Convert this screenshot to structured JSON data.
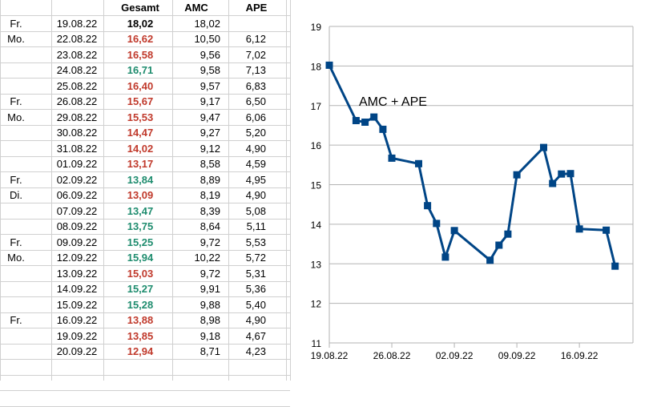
{
  "table": {
    "headers": {
      "day": "",
      "date": "",
      "gesamt": "Gesamt",
      "amc": "AMC",
      "ape": "APE"
    },
    "rows": [
      {
        "day": "Fr.",
        "date": "19.08.22",
        "gesamt": "18,02",
        "amc": "18,02",
        "ape": "",
        "gesamt_color": "black"
      },
      {
        "day": "Mo.",
        "date": "22.08.22",
        "gesamt": "16,62",
        "amc": "10,50",
        "ape": "6,12",
        "gesamt_color": "red"
      },
      {
        "day": "",
        "date": "23.08.22",
        "gesamt": "16,58",
        "amc": "9,56",
        "ape": "7,02",
        "gesamt_color": "red"
      },
      {
        "day": "",
        "date": "24.08.22",
        "gesamt": "16,71",
        "amc": "9,58",
        "ape": "7,13",
        "gesamt_color": "green"
      },
      {
        "day": "",
        "date": "25.08.22",
        "gesamt": "16,40",
        "amc": "9,57",
        "ape": "6,83",
        "gesamt_color": "red"
      },
      {
        "day": "Fr.",
        "date": "26.08.22",
        "gesamt": "15,67",
        "amc": "9,17",
        "ape": "6,50",
        "gesamt_color": "red"
      },
      {
        "day": "Mo.",
        "date": "29.08.22",
        "gesamt": "15,53",
        "amc": "9,47",
        "ape": "6,06",
        "gesamt_color": "red"
      },
      {
        "day": "",
        "date": "30.08.22",
        "gesamt": "14,47",
        "amc": "9,27",
        "ape": "5,20",
        "gesamt_color": "red"
      },
      {
        "day": "",
        "date": "31.08.22",
        "gesamt": "14,02",
        "amc": "9,12",
        "ape": "4,90",
        "gesamt_color": "red"
      },
      {
        "day": "",
        "date": "01.09.22",
        "gesamt": "13,17",
        "amc": "8,58",
        "ape": "4,59",
        "gesamt_color": "red"
      },
      {
        "day": "Fr.",
        "date": "02.09.22",
        "gesamt": "13,84",
        "amc": "8,89",
        "ape": "4,95",
        "gesamt_color": "green"
      },
      {
        "day": "Di.",
        "date": "06.09.22",
        "gesamt": "13,09",
        "amc": "8,19",
        "ape": "4,90",
        "gesamt_color": "red"
      },
      {
        "day": "",
        "date": "07.09.22",
        "gesamt": "13,47",
        "amc": "8,39",
        "ape": "5,08",
        "gesamt_color": "green"
      },
      {
        "day": "",
        "date": "08.09.22",
        "gesamt": "13,75",
        "amc": "8,64",
        "ape": "5,11",
        "gesamt_color": "green"
      },
      {
        "day": "Fr.",
        "date": "09.09.22",
        "gesamt": "15,25",
        "amc": "9,72",
        "ape": "5,53",
        "gesamt_color": "green"
      },
      {
        "day": "Mo.",
        "date": "12.09.22",
        "gesamt": "15,94",
        "amc": "10,22",
        "ape": "5,72",
        "gesamt_color": "green"
      },
      {
        "day": "",
        "date": "13.09.22",
        "gesamt": "15,03",
        "amc": "9,72",
        "ape": "5,31",
        "gesamt_color": "red"
      },
      {
        "day": "",
        "date": "14.09.22",
        "gesamt": "15,27",
        "amc": "9,91",
        "ape": "5,36",
        "gesamt_color": "green"
      },
      {
        "day": "",
        "date": "15.09.22",
        "gesamt": "15,28",
        "amc": "9,88",
        "ape": "5,40",
        "gesamt_color": "green"
      },
      {
        "day": "Fr.",
        "date": "16.09.22",
        "gesamt": "13,88",
        "amc": "8,98",
        "ape": "4,90",
        "gesamt_color": "red"
      },
      {
        "day": "",
        "date": "19.09.22",
        "gesamt": "13,85",
        "amc": "9,18",
        "ape": "4,67",
        "gesamt_color": "red"
      },
      {
        "day": "",
        "date": "20.09.22",
        "gesamt": "12,94",
        "amc": "8,71",
        "ape": "4,23",
        "gesamt_color": "red"
      }
    ]
  },
  "colors": {
    "red": "#c0392b",
    "green": "#1e8c6e",
    "black": "#000000",
    "line": "#004586",
    "grid": "#b3b3b3"
  },
  "chart_data": {
    "type": "line",
    "title": "",
    "annotation": "AMC + APE",
    "xlabel": "",
    "ylabel": "",
    "ylim": [
      11,
      19
    ],
    "yticks": [
      11,
      12,
      13,
      14,
      15,
      16,
      17,
      18,
      19
    ],
    "xlim": [
      "19.08.22",
      "22.09.22"
    ],
    "xtick_labels": [
      "19.08.22",
      "26.08.22",
      "02.09.22",
      "09.09.22",
      "16.09.22"
    ],
    "grid": "horizontal",
    "legend": "none",
    "series": [
      {
        "points": [
          [
            "19.08.22",
            18.02
          ],
          [
            "22.08.22",
            16.62
          ],
          [
            "23.08.22",
            16.58
          ],
          [
            "24.08.22",
            16.71
          ],
          [
            "25.08.22",
            16.4
          ],
          [
            "26.08.22",
            15.67
          ],
          [
            "29.08.22",
            15.53
          ],
          [
            "30.08.22",
            14.47
          ],
          [
            "31.08.22",
            14.02
          ],
          [
            "01.09.22",
            13.17
          ],
          [
            "02.09.22",
            13.84
          ],
          [
            "06.09.22",
            13.09
          ],
          [
            "07.09.22",
            13.47
          ],
          [
            "08.09.22",
            13.75
          ],
          [
            "09.09.22",
            15.25
          ],
          [
            "12.09.22",
            15.94
          ],
          [
            "13.09.22",
            15.03
          ],
          [
            "14.09.22",
            15.27
          ],
          [
            "15.09.22",
            15.28
          ],
          [
            "16.09.22",
            13.88
          ],
          [
            "19.09.22",
            13.85
          ],
          [
            "20.09.22",
            12.94
          ]
        ]
      }
    ]
  }
}
